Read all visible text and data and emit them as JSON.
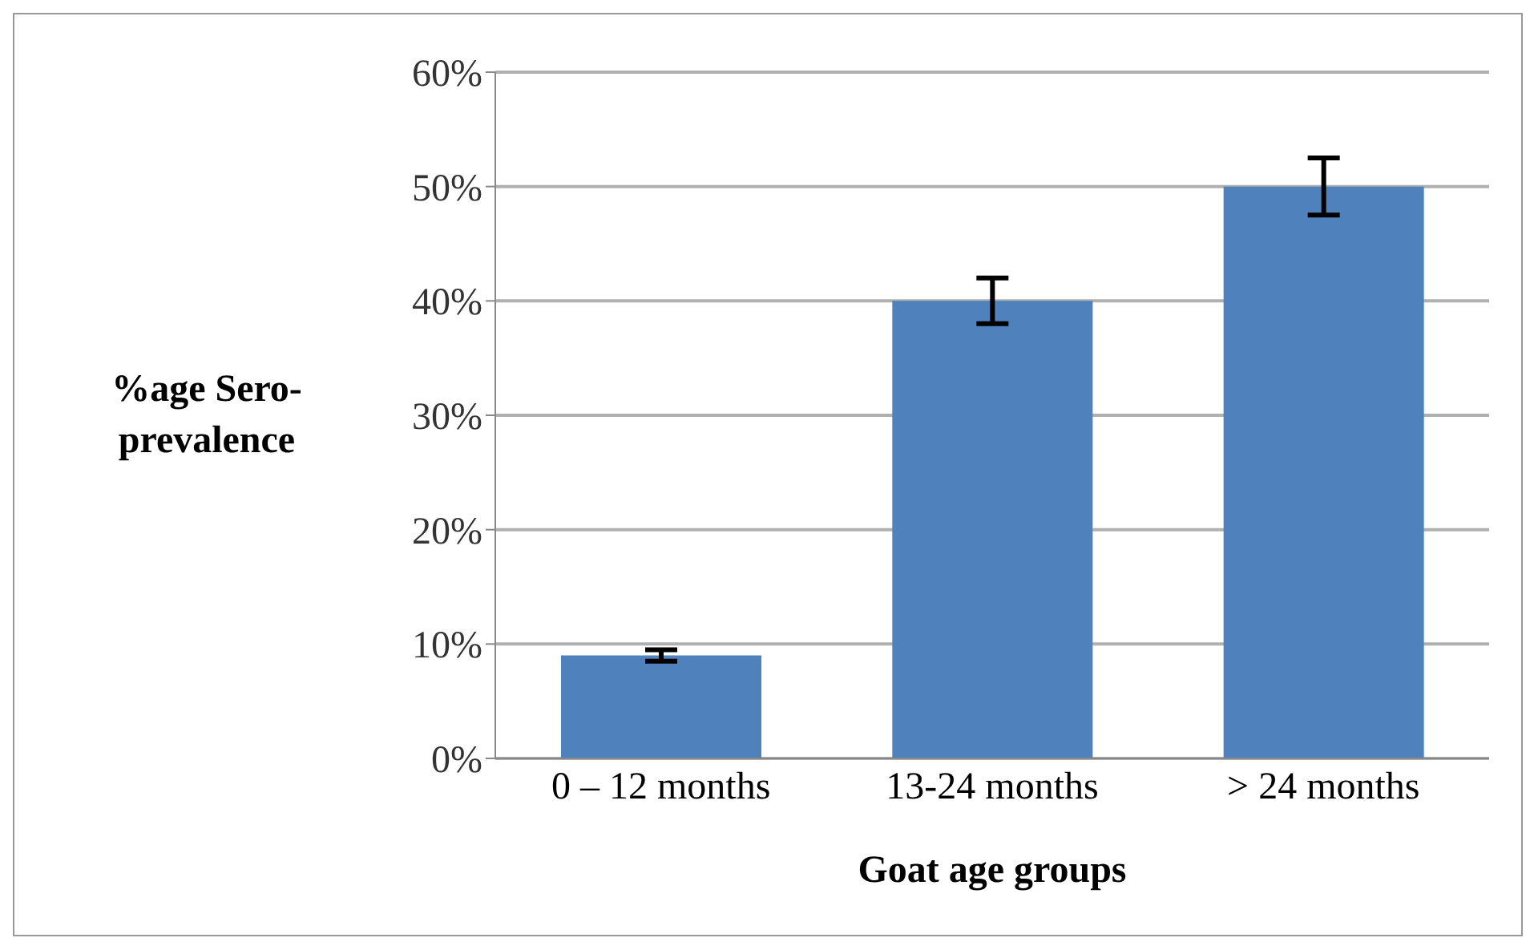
{
  "chart_data": {
    "type": "bar",
    "xlabel": "Goat age groups",
    "ylabel": "%age Sero-prevalence",
    "categories": [
      "0 – 12 months",
      "13-24 months",
      ">  24  months"
    ],
    "values": [
      9,
      40,
      50
    ],
    "errors": [
      0.5,
      2,
      2.5
    ],
    "color": "#4f81bd",
    "ylim": [
      0,
      60
    ],
    "yticks": [
      {
        "value": 0,
        "label": "0%"
      },
      {
        "value": 10,
        "label": "10%"
      },
      {
        "value": 20,
        "label": "20%"
      },
      {
        "value": 30,
        "label": "30%"
      },
      {
        "value": 40,
        "label": "40%"
      },
      {
        "value": 50,
        "label": "50%"
      },
      {
        "value": 60,
        "label": "60%"
      }
    ],
    "grid": "y"
  }
}
